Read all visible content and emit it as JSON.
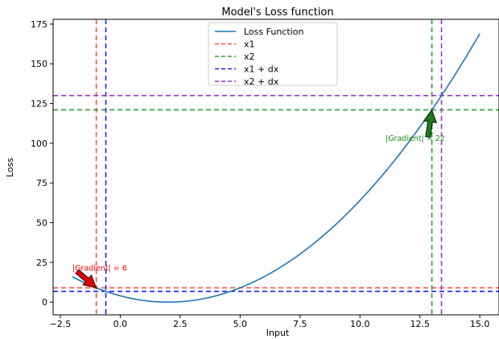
{
  "chart_data": {
    "type": "line",
    "title": "Model's Loss function",
    "xlabel": "Input",
    "ylabel": "Loss",
    "xlim": [
      -2.8,
      15.8
    ],
    "ylim": [
      -8,
      178
    ],
    "x_ticks": [
      -2.5,
      0.0,
      2.5,
      5.0,
      7.5,
      10.0,
      12.5,
      15.0
    ],
    "x_tick_labels": [
      "−2.5",
      "0.0",
      "2.5",
      "5.0",
      "7.5",
      "10.0",
      "12.5",
      "15.0"
    ],
    "y_ticks": [
      0,
      25,
      50,
      75,
      100,
      125,
      150,
      175
    ],
    "y_tick_labels": [
      "0",
      "25",
      "50",
      "75",
      "100",
      "125",
      "150",
      "175"
    ],
    "grid": false,
    "legend_position": "top-center",
    "series": [
      {
        "name": "Loss Function",
        "color": "#1f77b4",
        "style": "solid",
        "function": "(x - 2)^2",
        "x_range": [
          -2,
          15
        ]
      }
    ],
    "reference_lines": [
      {
        "name": "x1",
        "orientation": "vertical",
        "x": -1,
        "color": "#ff4d4d",
        "style": "dashed"
      },
      {
        "name": "x1",
        "orientation": "horizontal",
        "y": 9,
        "color": "#ff4d4d",
        "style": "dashed"
      },
      {
        "name": "x2",
        "orientation": "vertical",
        "x": 13,
        "color": "#2ca02c",
        "style": "dashed"
      },
      {
        "name": "x2",
        "orientation": "horizontal",
        "y": 121,
        "color": "#2ca02c",
        "style": "dashed"
      },
      {
        "name": "x1 + dx",
        "orientation": "vertical",
        "x": -0.6,
        "color": "#1f1fff",
        "style": "dashed"
      },
      {
        "name": "x1 + dx",
        "orientation": "horizontal",
        "y": 6.8,
        "color": "#1f1fff",
        "style": "dashed"
      },
      {
        "name": "x2 + dx",
        "orientation": "vertical",
        "x": 13.4,
        "color": "#9932cc",
        "style": "dashed"
      },
      {
        "name": "x2 + dx",
        "orientation": "horizontal",
        "y": 130,
        "color": "#9932cc",
        "style": "dashed"
      }
    ],
    "legend": [
      {
        "label": "Loss Function",
        "color": "#1f77b4",
        "style": "solid"
      },
      {
        "label": "x1",
        "color": "#ff4d4d",
        "style": "dashed"
      },
      {
        "label": "x2",
        "color": "#2ca02c",
        "style": "dashed"
      },
      {
        "label": "x1 + dx",
        "color": "#1f1fff",
        "style": "dashed"
      },
      {
        "label": "x2 + dx",
        "color": "#9932cc",
        "style": "dashed"
      }
    ],
    "annotations": [
      {
        "text": "|Gradient| = 6",
        "point": [
          -1,
          9
        ],
        "text_pos": [
          -2,
          22
        ],
        "color": "#e00000",
        "arrow_color": "#e00000"
      },
      {
        "text": "|Gradient| = 22",
        "point": [
          13,
          121
        ],
        "text_pos": [
          12.8,
          100
        ],
        "color": "#1a8a1a",
        "arrow_color": "#1a7a1a"
      }
    ]
  }
}
